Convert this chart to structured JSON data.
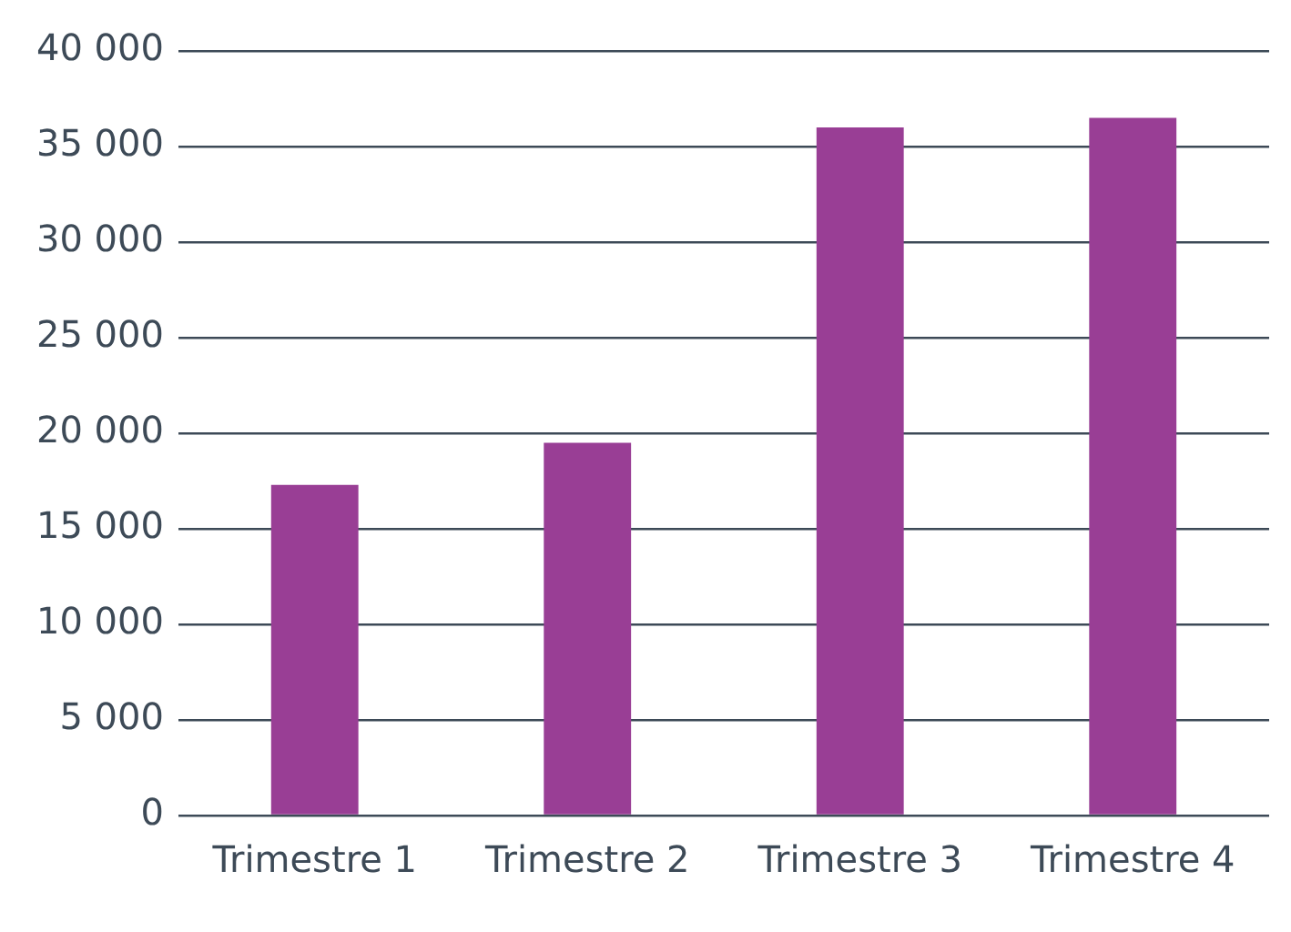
{
  "chart_data": {
    "type": "bar",
    "categories": [
      "Trimestre 1",
      "Trimestre 2",
      "Trimestre 3",
      "Trimestre 4"
    ],
    "values": [
      17300,
      19500,
      36000,
      36500
    ],
    "color": "#993e95",
    "ylim": [
      0,
      40000
    ],
    "yticks": [
      {
        "value": 0,
        "label": "0"
      },
      {
        "value": 5000,
        "label": "5 000"
      },
      {
        "value": 10000,
        "label": "10 000"
      },
      {
        "value": 15000,
        "label": "15 000"
      },
      {
        "value": 20000,
        "label": "20 000"
      },
      {
        "value": 25000,
        "label": "25 000"
      },
      {
        "value": 30000,
        "label": "30 000"
      },
      {
        "value": 35000,
        "label": "35 000"
      },
      {
        "value": 40000,
        "label": "40 000"
      }
    ],
    "grid": "y",
    "legend": false
  }
}
